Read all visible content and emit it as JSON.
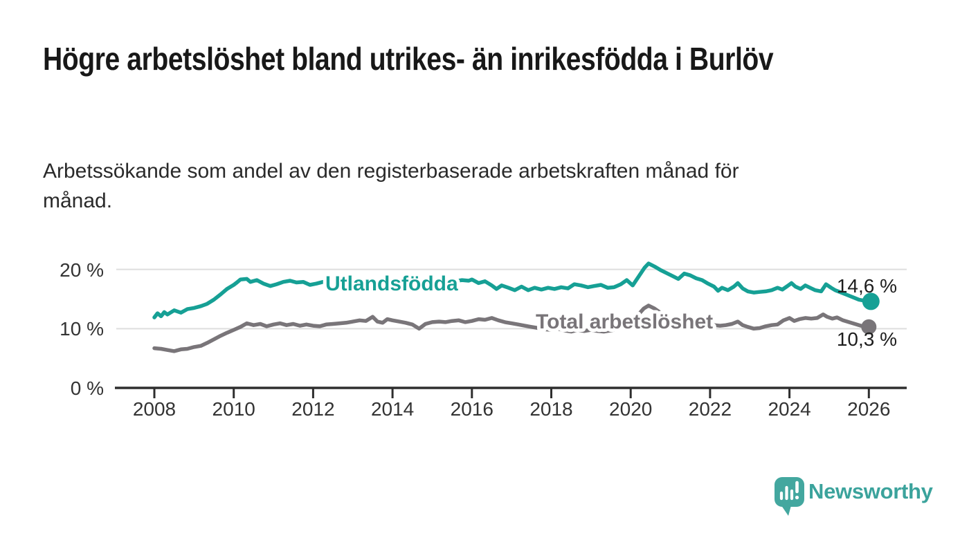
{
  "header": {
    "title": "Högre arbetslöshet bland utrikes- än inrikesfödda i Burlöv",
    "subtitle": "Arbetssökande som andel av den registerbaserade arbetskraften månad för månad."
  },
  "chart_data": {
    "type": "line",
    "unit": "%",
    "grid": "horizontal",
    "xlim": [
      2007.0,
      2027.0
    ],
    "ylim": [
      0,
      22
    ],
    "x_ticks": [
      2008,
      2010,
      2012,
      2014,
      2016,
      2018,
      2020,
      2022,
      2024,
      2026
    ],
    "y_ticks": [
      {
        "value": 0,
        "label": "0 %"
      },
      {
        "value": 10,
        "label": "10 %"
      },
      {
        "value": 20,
        "label": "20 %"
      }
    ],
    "series": [
      {
        "name": "Utlandsfödda",
        "color": "#16a095",
        "end_label": "14,6 %",
        "end_value": 14.6,
        "points": [
          [
            2008.0,
            11.9
          ],
          [
            2008.08,
            12.6
          ],
          [
            2008.17,
            12.1
          ],
          [
            2008.25,
            12.8
          ],
          [
            2008.33,
            12.4
          ],
          [
            2008.5,
            13.1
          ],
          [
            2008.67,
            12.7
          ],
          [
            2008.83,
            13.3
          ],
          [
            2009.0,
            13.5
          ],
          [
            2009.17,
            13.8
          ],
          [
            2009.33,
            14.2
          ],
          [
            2009.5,
            14.9
          ],
          [
            2009.67,
            15.8
          ],
          [
            2009.83,
            16.7
          ],
          [
            2010.0,
            17.4
          ],
          [
            2010.08,
            17.8
          ],
          [
            2010.17,
            18.3
          ],
          [
            2010.33,
            18.4
          ],
          [
            2010.42,
            17.9
          ],
          [
            2010.58,
            18.2
          ],
          [
            2010.75,
            17.6
          ],
          [
            2010.92,
            17.2
          ],
          [
            2011.08,
            17.5
          ],
          [
            2011.25,
            17.9
          ],
          [
            2011.42,
            18.1
          ],
          [
            2011.58,
            17.8
          ],
          [
            2011.75,
            17.9
          ],
          [
            2011.92,
            17.4
          ],
          [
            2012.08,
            17.6
          ],
          [
            2012.25,
            17.9
          ],
          [
            2012.42,
            17.6
          ],
          [
            2012.58,
            17.9
          ],
          [
            2012.75,
            17.7
          ],
          [
            2012.92,
            17.9
          ],
          [
            2013.08,
            18.0
          ],
          [
            2013.25,
            18.2
          ],
          [
            2013.42,
            18.4
          ],
          [
            2013.58,
            18.1
          ],
          [
            2013.75,
            18.3
          ],
          [
            2013.92,
            18.0
          ],
          [
            2014.08,
            18.2
          ],
          [
            2014.25,
            17.8
          ],
          [
            2014.42,
            18.0
          ],
          [
            2014.58,
            17.7
          ],
          [
            2014.75,
            17.9
          ],
          [
            2014.92,
            17.7
          ],
          [
            2015.08,
            17.9
          ],
          [
            2015.25,
            18.1
          ],
          [
            2015.42,
            17.8
          ],
          [
            2015.58,
            18.0
          ],
          [
            2015.75,
            18.2
          ],
          [
            2015.92,
            18.1
          ],
          [
            2016.0,
            18.3
          ],
          [
            2016.17,
            17.7
          ],
          [
            2016.33,
            18.0
          ],
          [
            2016.5,
            17.3
          ],
          [
            2016.62,
            16.7
          ],
          [
            2016.75,
            17.3
          ],
          [
            2016.92,
            16.9
          ],
          [
            2017.08,
            16.5
          ],
          [
            2017.25,
            17.1
          ],
          [
            2017.42,
            16.5
          ],
          [
            2017.58,
            16.9
          ],
          [
            2017.75,
            16.6
          ],
          [
            2017.92,
            16.9
          ],
          [
            2018.08,
            16.7
          ],
          [
            2018.25,
            17.0
          ],
          [
            2018.42,
            16.8
          ],
          [
            2018.58,
            17.5
          ],
          [
            2018.75,
            17.3
          ],
          [
            2018.92,
            17.0
          ],
          [
            2019.08,
            17.2
          ],
          [
            2019.25,
            17.4
          ],
          [
            2019.42,
            16.9
          ],
          [
            2019.58,
            17.0
          ],
          [
            2019.75,
            17.5
          ],
          [
            2019.9,
            18.2
          ],
          [
            2020.05,
            17.3
          ],
          [
            2020.2,
            18.8
          ],
          [
            2020.35,
            20.3
          ],
          [
            2020.45,
            21.0
          ],
          [
            2020.6,
            20.5
          ],
          [
            2020.75,
            19.9
          ],
          [
            2020.9,
            19.4
          ],
          [
            2021.05,
            18.9
          ],
          [
            2021.2,
            18.4
          ],
          [
            2021.35,
            19.3
          ],
          [
            2021.5,
            19.0
          ],
          [
            2021.65,
            18.5
          ],
          [
            2021.8,
            18.2
          ],
          [
            2021.95,
            17.6
          ],
          [
            2022.1,
            17.1
          ],
          [
            2022.2,
            16.4
          ],
          [
            2022.3,
            16.9
          ],
          [
            2022.45,
            16.5
          ],
          [
            2022.6,
            17.1
          ],
          [
            2022.7,
            17.7
          ],
          [
            2022.82,
            16.8
          ],
          [
            2022.95,
            16.3
          ],
          [
            2023.1,
            16.1
          ],
          [
            2023.25,
            16.2
          ],
          [
            2023.4,
            16.3
          ],
          [
            2023.55,
            16.5
          ],
          [
            2023.7,
            16.9
          ],
          [
            2023.82,
            16.6
          ],
          [
            2023.95,
            17.2
          ],
          [
            2024.05,
            17.7
          ],
          [
            2024.15,
            17.1
          ],
          [
            2024.28,
            16.7
          ],
          [
            2024.4,
            17.3
          ],
          [
            2024.52,
            16.9
          ],
          [
            2024.65,
            16.5
          ],
          [
            2024.8,
            16.3
          ],
          [
            2024.92,
            17.5
          ],
          [
            2025.05,
            16.9
          ],
          [
            2025.15,
            16.5
          ],
          [
            2025.3,
            16.1
          ],
          [
            2025.45,
            15.7
          ],
          [
            2025.6,
            15.3
          ],
          [
            2025.75,
            14.9
          ],
          [
            2025.9,
            14.7
          ],
          [
            2026.0,
            14.6
          ]
        ]
      },
      {
        "name": "Total arbetslöshet",
        "color": "#797579",
        "end_label": "10,3 %",
        "end_value": 10.3,
        "points": [
          [
            2008.0,
            6.7
          ],
          [
            2008.17,
            6.6
          ],
          [
            2008.33,
            6.4
          ],
          [
            2008.5,
            6.2
          ],
          [
            2008.67,
            6.5
          ],
          [
            2008.83,
            6.6
          ],
          [
            2009.0,
            6.9
          ],
          [
            2009.17,
            7.1
          ],
          [
            2009.33,
            7.6
          ],
          [
            2009.5,
            8.2
          ],
          [
            2009.67,
            8.8
          ],
          [
            2009.83,
            9.3
          ],
          [
            2010.0,
            9.8
          ],
          [
            2010.17,
            10.3
          ],
          [
            2010.33,
            10.9
          ],
          [
            2010.5,
            10.6
          ],
          [
            2010.67,
            10.8
          ],
          [
            2010.83,
            10.4
          ],
          [
            2011.0,
            10.7
          ],
          [
            2011.17,
            10.9
          ],
          [
            2011.33,
            10.6
          ],
          [
            2011.5,
            10.8
          ],
          [
            2011.67,
            10.5
          ],
          [
            2011.83,
            10.7
          ],
          [
            2012.0,
            10.5
          ],
          [
            2012.17,
            10.4
          ],
          [
            2012.33,
            10.7
          ],
          [
            2012.5,
            10.8
          ],
          [
            2012.67,
            10.9
          ],
          [
            2012.83,
            11.0
          ],
          [
            2013.0,
            11.2
          ],
          [
            2013.17,
            11.4
          ],
          [
            2013.33,
            11.3
          ],
          [
            2013.5,
            12.0
          ],
          [
            2013.62,
            11.2
          ],
          [
            2013.75,
            11.0
          ],
          [
            2013.87,
            11.6
          ],
          [
            2014.0,
            11.4
          ],
          [
            2014.17,
            11.2
          ],
          [
            2014.33,
            11.0
          ],
          [
            2014.5,
            10.7
          ],
          [
            2014.67,
            10.0
          ],
          [
            2014.83,
            10.8
          ],
          [
            2015.0,
            11.1
          ],
          [
            2015.17,
            11.2
          ],
          [
            2015.33,
            11.1
          ],
          [
            2015.5,
            11.3
          ],
          [
            2015.67,
            11.4
          ],
          [
            2015.83,
            11.1
          ],
          [
            2016.0,
            11.3
          ],
          [
            2016.17,
            11.6
          ],
          [
            2016.33,
            11.5
          ],
          [
            2016.5,
            11.8
          ],
          [
            2016.67,
            11.4
          ],
          [
            2016.83,
            11.1
          ],
          [
            2017.0,
            10.9
          ],
          [
            2017.17,
            10.7
          ],
          [
            2017.33,
            10.5
          ],
          [
            2017.5,
            10.3
          ],
          [
            2017.67,
            10.1
          ],
          [
            2017.83,
            9.9
          ],
          [
            2018.0,
            9.8
          ],
          [
            2018.17,
            10.0
          ],
          [
            2018.33,
            9.7
          ],
          [
            2018.5,
            9.5
          ],
          [
            2018.67,
            9.8
          ],
          [
            2018.83,
            9.6
          ],
          [
            2019.0,
            9.8
          ],
          [
            2019.17,
            9.6
          ],
          [
            2019.33,
            9.5
          ],
          [
            2019.5,
            9.7
          ],
          [
            2019.67,
            9.9
          ],
          [
            2019.83,
            10.3
          ],
          [
            2020.0,
            10.9
          ],
          [
            2020.17,
            12.2
          ],
          [
            2020.33,
            13.4
          ],
          [
            2020.45,
            13.9
          ],
          [
            2020.6,
            13.4
          ],
          [
            2020.75,
            12.7
          ],
          [
            2020.9,
            12.1
          ],
          [
            2021.05,
            11.7
          ],
          [
            2021.2,
            11.3
          ],
          [
            2021.35,
            11.0
          ],
          [
            2021.5,
            10.8
          ],
          [
            2021.65,
            10.7
          ],
          [
            2021.8,
            10.6
          ],
          [
            2021.95,
            10.5
          ],
          [
            2022.1,
            10.6
          ],
          [
            2022.25,
            10.5
          ],
          [
            2022.4,
            10.6
          ],
          [
            2022.55,
            10.8
          ],
          [
            2022.7,
            11.2
          ],
          [
            2022.82,
            10.6
          ],
          [
            2022.95,
            10.3
          ],
          [
            2023.1,
            10.0
          ],
          [
            2023.25,
            10.1
          ],
          [
            2023.4,
            10.4
          ],
          [
            2023.55,
            10.6
          ],
          [
            2023.7,
            10.7
          ],
          [
            2023.85,
            11.4
          ],
          [
            2024.0,
            11.8
          ],
          [
            2024.12,
            11.3
          ],
          [
            2024.25,
            11.6
          ],
          [
            2024.4,
            11.8
          ],
          [
            2024.55,
            11.7
          ],
          [
            2024.7,
            11.8
          ],
          [
            2024.85,
            12.4
          ],
          [
            2024.95,
            12.0
          ],
          [
            2025.08,
            11.7
          ],
          [
            2025.2,
            11.9
          ],
          [
            2025.35,
            11.4
          ],
          [
            2025.5,
            11.1
          ],
          [
            2025.65,
            10.8
          ],
          [
            2025.8,
            10.5
          ],
          [
            2025.9,
            10.4
          ],
          [
            2026.0,
            10.3
          ]
        ]
      }
    ]
  },
  "footer": {
    "brand": "Newsworthy",
    "logo_color": "#43a79f"
  }
}
